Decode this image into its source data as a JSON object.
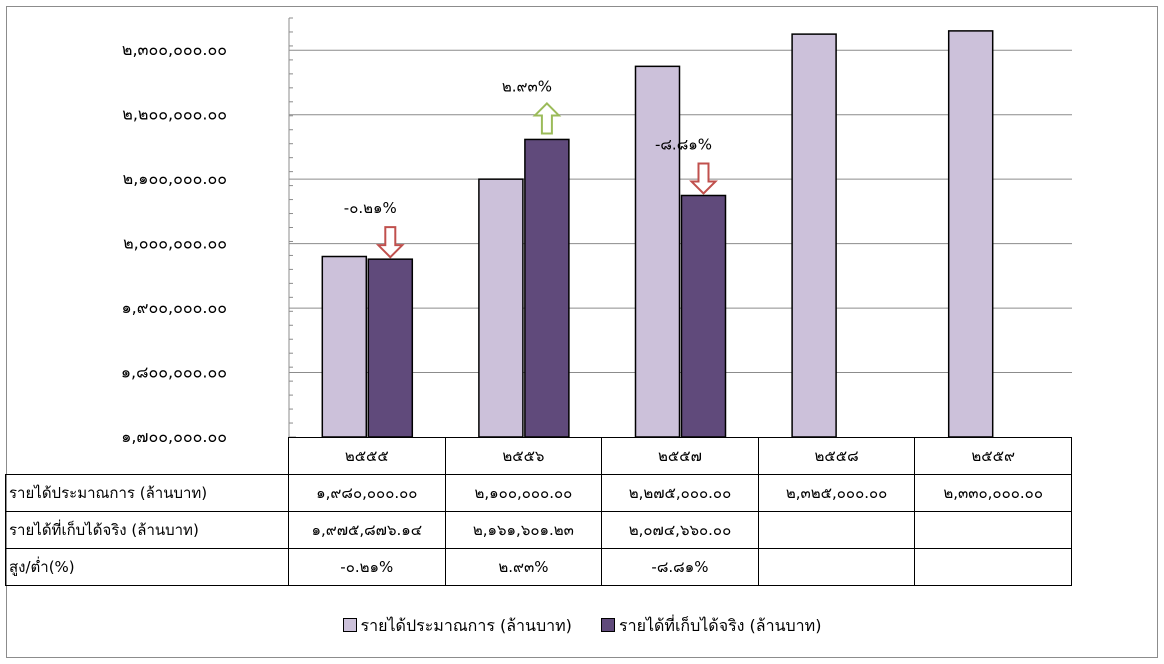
{
  "chart_data": {
    "type": "bar",
    "categories": [
      "๒๕๕๕",
      "๒๕๕๖",
      "๒๕๕๗",
      "๒๕๕๘",
      "๒๕๕๙"
    ],
    "series": [
      {
        "name": "รายได้ประมาณการ (ล้านบาท)",
        "color": "#ccc1da",
        "values": [
          1980000,
          2100000,
          2275000,
          2325000,
          2330000
        ]
      },
      {
        "name": "รายได้ที่เก็บได้จริง (ล้านบาท)",
        "color": "#604a7b",
        "values": [
          1975876.14,
          2161601.23,
          2074660.0,
          null,
          null
        ]
      }
    ],
    "ylim": [
      1700000,
      2350000
    ],
    "yticks": [
      1700000,
      1800000,
      1900000,
      2000000,
      2100000,
      2200000,
      2300000
    ],
    "ytick_labels": [
      "๑,๗๐๐,๐๐๐.๐๐",
      "๑,๘๐๐,๐๐๐.๐๐",
      "๑,๙๐๐,๐๐๐.๐๐",
      "๒,๐๐๐,๐๐๐.๐๐",
      "๒,๑๐๐,๐๐๐.๐๐",
      "๒,๒๐๐,๐๐๐.๐๐",
      "๒,๓๐๐,๐๐๐.๐๐"
    ],
    "grid": true,
    "legend_position": "bottom",
    "annotations": [
      {
        "category_index": 0,
        "text": "-๐.๒๑%",
        "direction": "down",
        "color": "#c0504d"
      },
      {
        "category_index": 1,
        "text": "๒.๙๓%",
        "direction": "up",
        "color": "#9bbb59"
      },
      {
        "category_index": 2,
        "text": "-๘.๘๑%",
        "direction": "down",
        "color": "#c0504d"
      }
    ],
    "data_table": {
      "rows": [
        {
          "label": "รายได้ประมาณการ (ล้านบาท)",
          "cells": [
            "๑,๙๘๐,๐๐๐.๐๐",
            "๒,๑๐๐,๐๐๐.๐๐",
            "๒,๒๗๕,๐๐๐.๐๐",
            "๒,๓๒๕,๐๐๐.๐๐",
            "๒,๓๓๐,๐๐๐.๐๐"
          ]
        },
        {
          "label": "รายได้ที่เก็บได้จริง (ล้านบาท)",
          "cells": [
            "๑,๙๗๕,๘๗๖.๑๔",
            "๒,๑๖๑,๖๐๑.๒๓",
            "๒,๐๗๔,๖๖๐.๐๐",
            "",
            ""
          ]
        },
        {
          "label": "สูง/ต่ำ(%)",
          "cells": [
            "-๐.๒๑%",
            "๒.๙๓%",
            "-๘.๘๑%",
            "",
            ""
          ]
        }
      ]
    }
  }
}
